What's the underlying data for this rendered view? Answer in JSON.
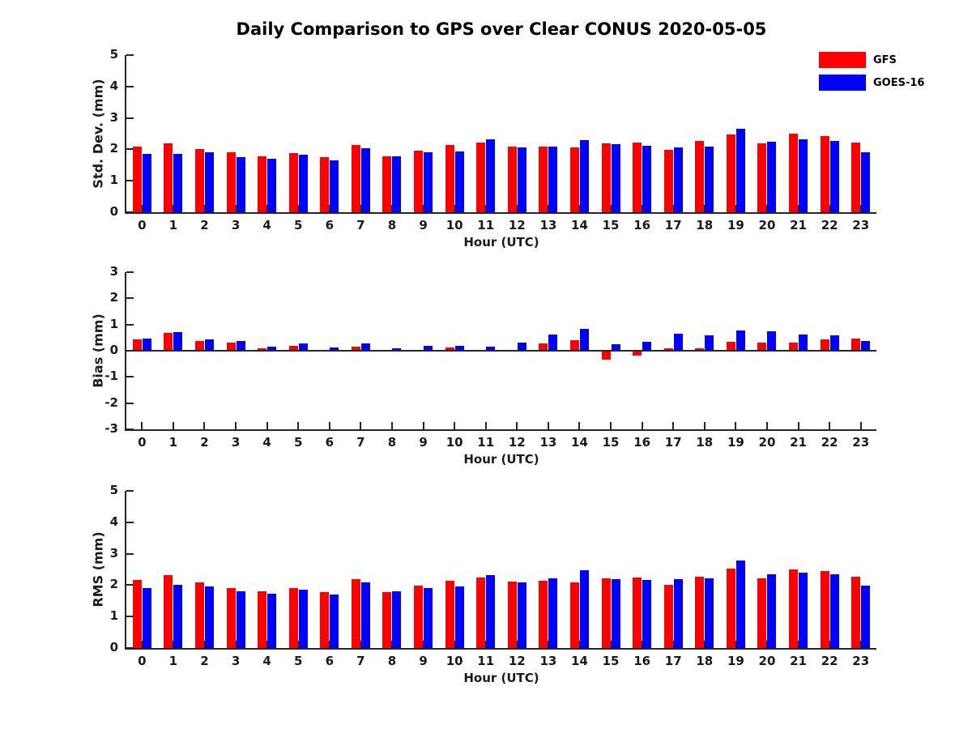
{
  "title": "Daily Comparison to GPS over Clear CONUS 2020-05-05",
  "legend": {
    "position": "top-right",
    "items": [
      {
        "label": "GFS",
        "color": "#ff0000"
      },
      {
        "label": "GOES-16",
        "color": "#0000ff"
      }
    ]
  },
  "chart_data": [
    {
      "type": "bar",
      "panel": "std_dev",
      "ylabel": "Std. Dev. (mm)",
      "xlabel": "Hour (UTC)",
      "categories": [
        "0",
        "1",
        "2",
        "3",
        "4",
        "5",
        "6",
        "7",
        "8",
        "9",
        "10",
        "11",
        "12",
        "13",
        "14",
        "15",
        "16",
        "17",
        "18",
        "19",
        "20",
        "21",
        "22",
        "23"
      ],
      "ylim": [
        0,
        5
      ],
      "yticks": [
        0,
        1,
        2,
        3,
        4,
        5
      ],
      "grid": false,
      "series": [
        {
          "name": "GFS",
          "color": "#ff0000",
          "values": [
            2.1,
            2.2,
            2.02,
            1.9,
            1.78,
            1.87,
            1.74,
            2.13,
            1.77,
            1.97,
            2.15,
            2.22,
            2.1,
            2.1,
            2.05,
            2.18,
            2.22,
            1.98,
            2.26,
            2.48,
            2.18,
            2.5,
            2.42,
            2.22
          ]
        },
        {
          "name": "GOES-16",
          "color": "#0000ff",
          "values": [
            1.85,
            1.85,
            1.9,
            1.76,
            1.71,
            1.82,
            1.64,
            2.04,
            1.79,
            1.92,
            1.93,
            2.33,
            2.06,
            2.1,
            2.3,
            2.16,
            2.11,
            2.05,
            2.1,
            2.65,
            2.24,
            2.31,
            2.28,
            1.91
          ]
        }
      ]
    },
    {
      "type": "bar",
      "panel": "bias",
      "ylabel": "Bias (mm)",
      "xlabel": "Hour (UTC)",
      "categories": [
        "0",
        "1",
        "2",
        "3",
        "4",
        "5",
        "6",
        "7",
        "8",
        "9",
        "10",
        "11",
        "12",
        "13",
        "14",
        "15",
        "16",
        "17",
        "18",
        "19",
        "20",
        "21",
        "22",
        "23"
      ],
      "ylim": [
        -3,
        3
      ],
      "yticks": [
        -3,
        -2,
        -1,
        0,
        1,
        2,
        3
      ],
      "grid": false,
      "series": [
        {
          "name": "GFS",
          "color": "#ff0000",
          "values": [
            0.42,
            0.68,
            0.38,
            0.32,
            0.08,
            0.18,
            0.03,
            0.17,
            -0.03,
            0.02,
            0.12,
            0.02,
            0.03,
            0.28,
            0.4,
            -0.35,
            -0.2,
            0.1,
            0.1,
            0.35,
            0.3,
            0.3,
            0.42,
            0.45
          ]
        },
        {
          "name": "GOES-16",
          "color": "#0000ff",
          "values": [
            0.45,
            0.7,
            0.42,
            0.36,
            0.15,
            0.27,
            0.13,
            0.28,
            0.09,
            0.2,
            0.18,
            0.17,
            0.3,
            0.62,
            0.85,
            0.25,
            0.35,
            0.65,
            0.6,
            0.78,
            0.75,
            0.62,
            0.58,
            0.38
          ]
        }
      ]
    },
    {
      "type": "bar",
      "panel": "rms",
      "ylabel": "RMS (mm)",
      "xlabel": "Hour (UTC)",
      "categories": [
        "0",
        "1",
        "2",
        "3",
        "4",
        "5",
        "6",
        "7",
        "8",
        "9",
        "10",
        "11",
        "12",
        "13",
        "14",
        "15",
        "16",
        "17",
        "18",
        "19",
        "20",
        "21",
        "22",
        "23"
      ],
      "ylim": [
        0,
        5
      ],
      "yticks": [
        0,
        1,
        2,
        3,
        4,
        5
      ],
      "grid": false,
      "series": [
        {
          "name": "GFS",
          "color": "#ff0000",
          "values": [
            2.17,
            2.32,
            2.08,
            1.92,
            1.8,
            1.92,
            1.77,
            2.18,
            1.77,
            1.98,
            2.15,
            2.24,
            2.11,
            2.13,
            2.09,
            2.22,
            2.25,
            2.01,
            2.26,
            2.52,
            2.22,
            2.5,
            2.46,
            2.27
          ]
        },
        {
          "name": "GOES-16",
          "color": "#0000ff",
          "values": [
            1.92,
            2.0,
            1.95,
            1.8,
            1.73,
            1.85,
            1.71,
            2.1,
            1.8,
            1.92,
            1.95,
            2.32,
            2.08,
            2.22,
            2.47,
            2.19,
            2.16,
            2.2,
            2.22,
            2.78,
            2.35,
            2.4,
            2.35,
            1.98
          ]
        }
      ]
    }
  ]
}
